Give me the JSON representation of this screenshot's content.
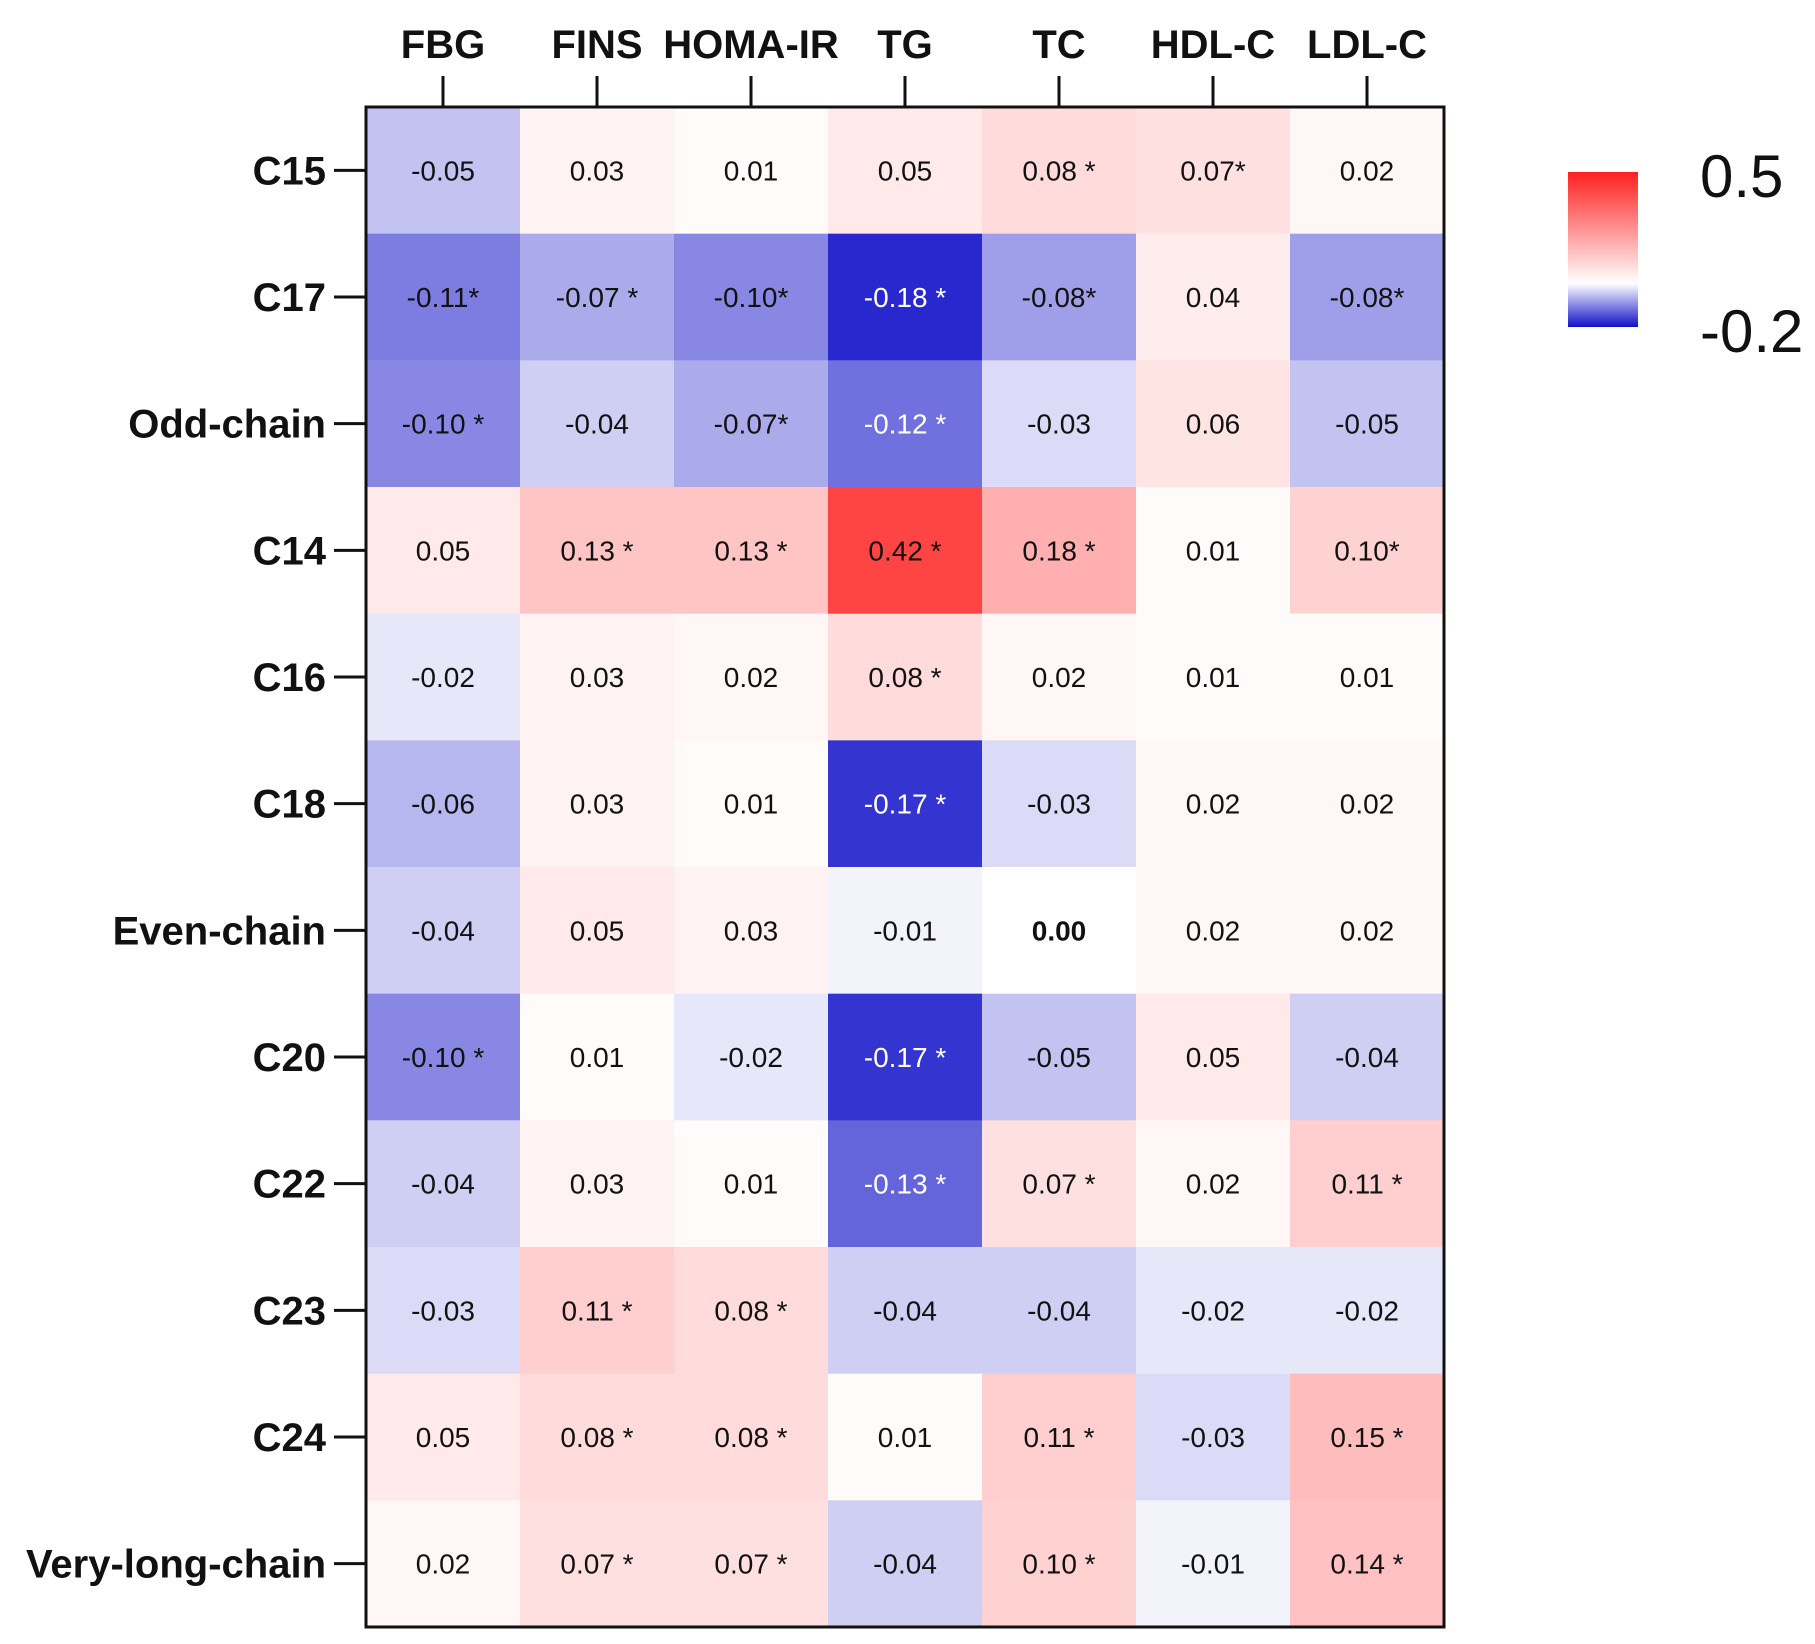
{
  "chart_data": {
    "type": "heatmap",
    "columns": [
      "FBG",
      "FINS",
      "HOMA-IR",
      "TG",
      "TC",
      "HDL-C",
      "LDL-C"
    ],
    "rows": [
      "C15",
      "C17",
      "Odd-chain",
      "C14",
      "C16",
      "C18",
      "Even-chain",
      "C20",
      "C22",
      "C23",
      "C24",
      "Very-long-chain"
    ],
    "values": [
      [
        -0.05,
        0.03,
        0.01,
        0.05,
        0.08,
        0.07,
        0.02
      ],
      [
        -0.11,
        -0.07,
        -0.1,
        -0.18,
        -0.08,
        0.04,
        -0.08
      ],
      [
        -0.1,
        -0.04,
        -0.07,
        -0.12,
        -0.03,
        0.06,
        -0.05
      ],
      [
        0.05,
        0.13,
        0.13,
        0.42,
        0.18,
        0.01,
        0.1
      ],
      [
        -0.02,
        0.03,
        0.02,
        0.08,
        0.02,
        0.01,
        0.01
      ],
      [
        -0.06,
        0.03,
        0.01,
        -0.17,
        -0.03,
        0.02,
        0.02
      ],
      [
        -0.04,
        0.05,
        0.03,
        -0.01,
        0.0,
        0.02,
        0.02
      ],
      [
        -0.1,
        0.01,
        -0.02,
        -0.17,
        -0.05,
        0.05,
        -0.04
      ],
      [
        -0.04,
        0.03,
        0.01,
        -0.13,
        0.07,
        0.02,
        0.11
      ],
      [
        -0.03,
        0.11,
        0.08,
        -0.04,
        -0.04,
        -0.02,
        -0.02
      ],
      [
        0.05,
        0.08,
        0.08,
        0.01,
        0.11,
        -0.03,
        0.15
      ],
      [
        0.02,
        0.07,
        0.07,
        -0.04,
        0.1,
        -0.01,
        0.14
      ]
    ],
    "labels": [
      [
        "-0.05",
        "0.03",
        "0.01",
        "0.05",
        "0.08 *",
        "0.07*",
        "0.02"
      ],
      [
        "-0.11*",
        "-0.07 *",
        "-0.10*",
        "-0.18 *",
        "-0.08*",
        "0.04",
        "-0.08*"
      ],
      [
        "-0.10 *",
        "-0.04",
        "-0.07*",
        "-0.12 *",
        "-0.03",
        "0.06",
        "-0.05"
      ],
      [
        "0.05",
        "0.13 *",
        "0.13 *",
        "0.42 *",
        "0.18 *",
        "0.01",
        "0.10*"
      ],
      [
        "-0.02",
        "0.03",
        "0.02",
        "0.08 *",
        "0.02",
        "0.01",
        "0.01"
      ],
      [
        "-0.06",
        "0.03",
        "0.01",
        "-0.17 *",
        "-0.03",
        "0.02",
        "0.02"
      ],
      [
        "-0.04",
        "0.05",
        "0.03",
        "-0.01",
        "0.00",
        "0.02",
        "0.02"
      ],
      [
        "-0.10 *",
        "0.01",
        "-0.02",
        "-0.17 *",
        "-0.05",
        "0.05",
        "-0.04"
      ],
      [
        "-0.04",
        "0.03",
        "0.01",
        "-0.13 *",
        "0.07 *",
        "0.02",
        "0.11 *"
      ],
      [
        "-0.03",
        "0.11 *",
        "0.08 *",
        "-0.04",
        "-0.04",
        "-0.02",
        "-0.02"
      ],
      [
        "0.05",
        "0.08 *",
        "0.08 *",
        "0.01",
        "0.11 *",
        "-0.03",
        "0.15 *"
      ],
      [
        "0.02",
        "0.07 *",
        "0.07 *",
        "-0.04",
        "0.10 *",
        "-0.01",
        "0.14 *"
      ]
    ],
    "bold_labels": [
      [
        6,
        4
      ]
    ],
    "color_scale": {
      "min": -0.2,
      "max": 0.5,
      "min_label": "-0.2",
      "max_label": "0.5",
      "negative_color": "#1010c8",
      "zero_color": "#ffffff",
      "positive_color": "#ff2020"
    },
    "legend_position": "right"
  }
}
